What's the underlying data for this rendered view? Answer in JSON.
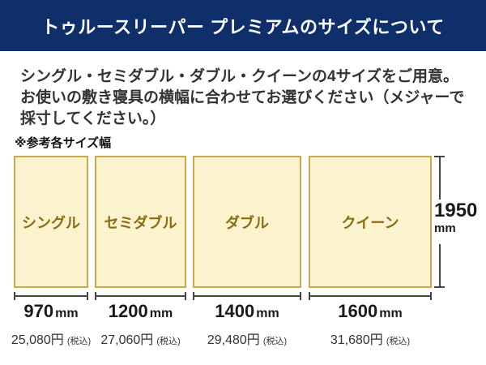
{
  "header": {
    "title": "トゥルースリーパー プレミアムのサイズについて"
  },
  "intro": {
    "line1": "シングル・セミダブル・ダブル・クイーンの4サイズをご用意。",
    "line2": "お使いの敷き寝具の横幅に合わせてお選びください（メジャーで",
    "line3": "採寸してください。）"
  },
  "reference_label": "※参考各サイズ幅",
  "height_measure": {
    "value": "1950",
    "unit": "mm"
  },
  "sizes": [
    {
      "label": "シングル",
      "width_value": "970",
      "width_unit": "mm",
      "price": "25,080円",
      "tax_note": "(税込)"
    },
    {
      "label": "セミダブル",
      "width_value": "1200",
      "width_unit": "mm",
      "price": "27,060円",
      "tax_note": "(税込)"
    },
    {
      "label": "ダブル",
      "width_value": "1400",
      "width_unit": "mm",
      "price": "29,480円",
      "tax_note": "(税込)"
    },
    {
      "label": "クイーン",
      "width_value": "1600",
      "width_unit": "mm",
      "price": "31,680円",
      "tax_note": "(税込)"
    }
  ],
  "colors": {
    "header_bg": "#0F2F6B",
    "header_text": "#FFFFFF",
    "box_fill": "#FBF3CE",
    "box_border": "#C9A84E",
    "box_label_text": "#8A6C15",
    "measure_line": "#444444",
    "body_text": "#333333"
  }
}
